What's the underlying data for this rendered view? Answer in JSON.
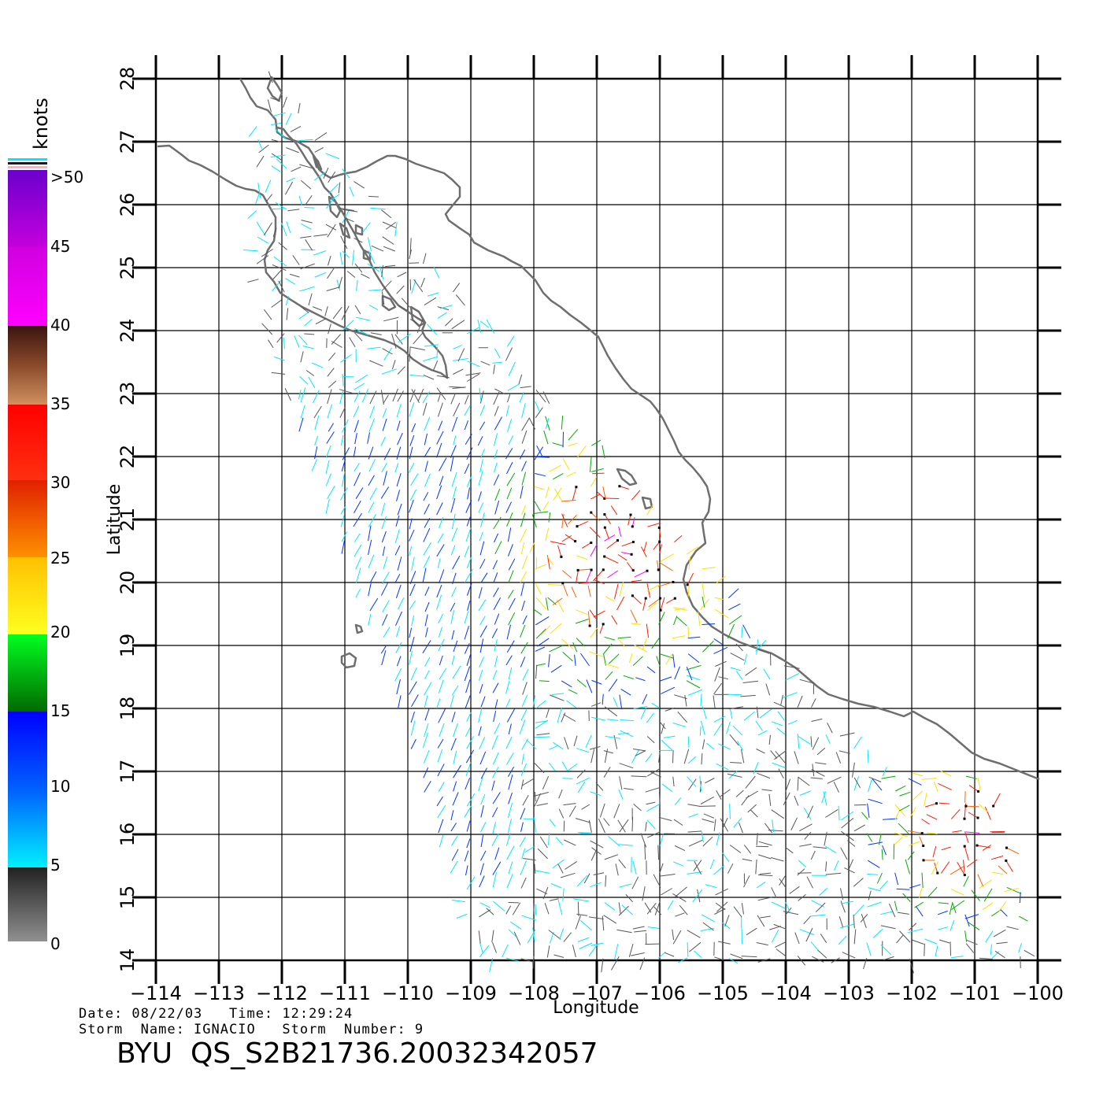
{
  "colorbar": {
    "unit_label": "knots",
    "ticks": [
      ">50",
      "45",
      "40",
      "35",
      "30",
      "25",
      "20",
      "15",
      "10",
      "5",
      "0"
    ],
    "colors": {
      "0-5": "#555555",
      "5-10": "#00e8ff",
      "10-15": "#0033ff",
      "15-20": "#00aa00",
      "20-25": "#ffe000",
      "25-30": "#ff6000",
      "30-35": "#ff1a00",
      "35-40": "#8a4a2a",
      "40-45": "#ff00ff",
      "45-50": "#8800cc"
    }
  },
  "axes": {
    "xlabel": "Longitude",
    "ylabel": "Latitude",
    "lon_range": [
      -114,
      -100
    ],
    "lat_range": [
      14,
      28
    ],
    "lon_ticks": [
      "−114",
      "−113",
      "−112",
      "−111",
      "−110",
      "−109",
      "−108",
      "−107",
      "−106",
      "−105",
      "−104",
      "−103",
      "−102",
      "−101",
      "−100"
    ],
    "lat_ticks": [
      "14",
      "15",
      "16",
      "17",
      "18",
      "19",
      "20",
      "21",
      "22",
      "23",
      "24",
      "25",
      "26",
      "27",
      "28"
    ],
    "grid": true
  },
  "coast_color": "#6e6e6e",
  "footer": {
    "line1": "Date: 08/22/03   Time: 12:29:24",
    "line2": "Storm  Name: IGNACIO   Storm  Number: 9",
    "product_id": "BYU  QS_S2B21736.20032342057"
  }
}
